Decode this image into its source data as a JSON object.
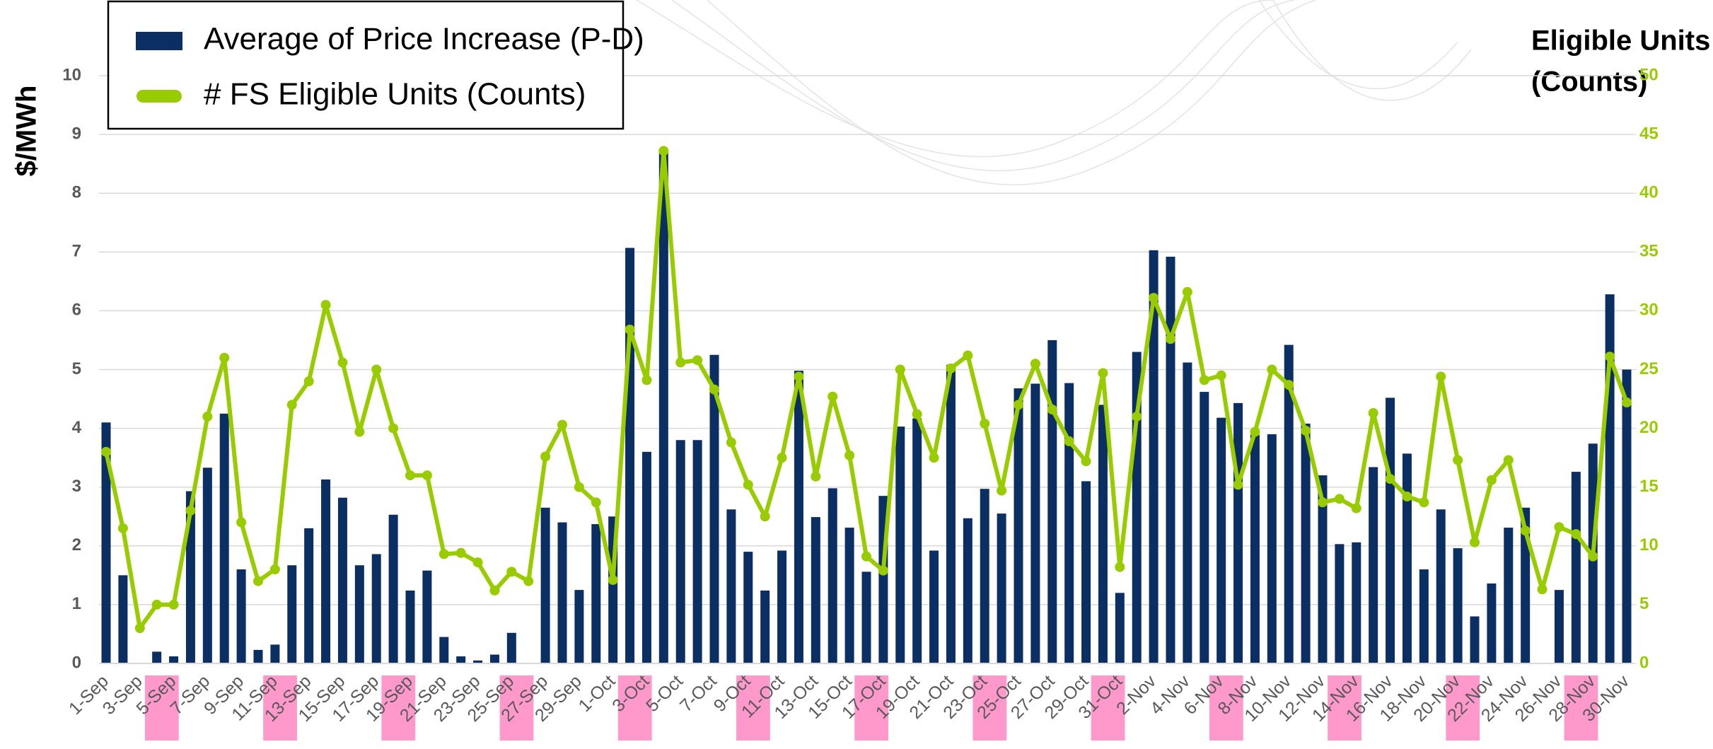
{
  "chart_data": {
    "type": "bar",
    "y_label": "$/MWh",
    "y2_label": [
      "Eligible Units",
      "(Counts)"
    ],
    "categories": [
      "1-Sep",
      null,
      "3-Sep",
      null,
      "5-Sep",
      null,
      "7-Sep",
      null,
      "9-Sep",
      null,
      "11-Sep",
      null,
      "13-Sep",
      null,
      "15-Sep",
      null,
      "17-Sep",
      null,
      "19-Sep",
      null,
      "21-Sep",
      null,
      "23-Sep",
      null,
      "25-Sep",
      null,
      "27-Sep",
      null,
      "29-Sep",
      null,
      "1-Oct",
      null,
      "3-Oct",
      null,
      "5-Oct",
      null,
      "7-Oct",
      null,
      "9-Oct",
      null,
      "11-Oct",
      null,
      "13-Oct",
      null,
      "15-Oct",
      null,
      "17-Oct",
      null,
      "19-Oct",
      null,
      "21-Oct",
      null,
      "23-Oct",
      null,
      "25-Oct",
      null,
      "27-Oct",
      null,
      "29-Oct",
      null,
      "31-Oct",
      null,
      "2-Nov",
      null,
      "4-Nov",
      null,
      "6-Nov",
      null,
      "8-Nov",
      null,
      "10-Nov",
      null,
      "12-Nov",
      null,
      "14-Nov",
      null,
      "16-Nov",
      null,
      "18-Nov",
      null,
      "20-Nov",
      null,
      "22-Nov",
      null,
      "24-Nov",
      null,
      "26-Nov",
      null,
      "28-Nov",
      null,
      "30-Nov"
    ],
    "series": [
      {
        "name": "Average of Price Increase (P-D)",
        "type": "bar",
        "color": "#0b2f63",
        "values": [
          4.1,
          1.5,
          0,
          0.2,
          0.12,
          2.93,
          3.33,
          4.25,
          1.6,
          0.23,
          0.32,
          1.67,
          2.3,
          3.13,
          2.82,
          1.67,
          1.86,
          2.53,
          1.24,
          1.58,
          0.45,
          0.12,
          0.05,
          0.15,
          0.52,
          0,
          2.65,
          2.4,
          1.25,
          2.37,
          2.5,
          7.07,
          3.6,
          8.75,
          3.8,
          3.8,
          5.25,
          2.62,
          1.9,
          1.24,
          1.92,
          4.98,
          2.49,
          2.98,
          2.31,
          1.56,
          2.85,
          4.03,
          4.17,
          1.92,
          5.08,
          2.47,
          2.97,
          2.55,
          4.68,
          4.76,
          5.5,
          4.77,
          3.1,
          4.4,
          1.2,
          5.3,
          7.03,
          6.92,
          5.12,
          4.62,
          4.18,
          4.43,
          3.89,
          3.9,
          5.42,
          4.08,
          3.2,
          2.03,
          2.06,
          3.34,
          4.52,
          3.57,
          1.6,
          2.62,
          1.96,
          0.8,
          1.36,
          2.31,
          2.65,
          0,
          1.25,
          3.26,
          3.74,
          6.28,
          5.0
        ]
      },
      {
        "name": "# FS Eligible Units (Counts)",
        "type": "line",
        "axis": "y2",
        "color": "#99cc00",
        "values": [
          18,
          11.5,
          3,
          5,
          5,
          13,
          21,
          26,
          12,
          7,
          8,
          22,
          24,
          30.5,
          25.6,
          19.7,
          25,
          20,
          16,
          16,
          9.3,
          9.4,
          8.6,
          6.2,
          7.8,
          7,
          17.6,
          20.3,
          15,
          13.7,
          7.1,
          28.4,
          24.1,
          43.6,
          25.6,
          25.8,
          23.3,
          18.8,
          15.2,
          12.5,
          17.5,
          24.4,
          15.9,
          22.7,
          17.7,
          9.1,
          7.9,
          25,
          21.2,
          17.5,
          25.1,
          26.2,
          20.4,
          14.7,
          22,
          25.5,
          21.6,
          18.9,
          17.2,
          24.7,
          8.2,
          21,
          31.1,
          27.6,
          31.6,
          24.1,
          24.5,
          15.2,
          19.7,
          25,
          23.7,
          19.8,
          13.7,
          14,
          13.2,
          21.3,
          15.7,
          14.2,
          13.7,
          24.4,
          17.3,
          10.3,
          15.6,
          17.3,
          11.3,
          6.3,
          11.6,
          11,
          9.1,
          26.1,
          22.2
        ]
      }
    ],
    "ylim": [
      0,
      10
    ],
    "yticks": [
      0,
      1,
      2,
      3,
      4,
      5,
      6,
      7,
      8,
      9,
      10
    ],
    "y2lim": [
      0,
      50
    ],
    "y2ticks": [
      0,
      5,
      10,
      15,
      20,
      25,
      30,
      35,
      40,
      45,
      50
    ],
    "grid": true,
    "legend": "upper left",
    "shaded_categories": [
      3,
      10,
      17,
      24,
      31,
      38,
      45,
      52,
      59,
      66,
      73,
      80,
      87
    ],
    "shade_color": "#ff99cc"
  }
}
